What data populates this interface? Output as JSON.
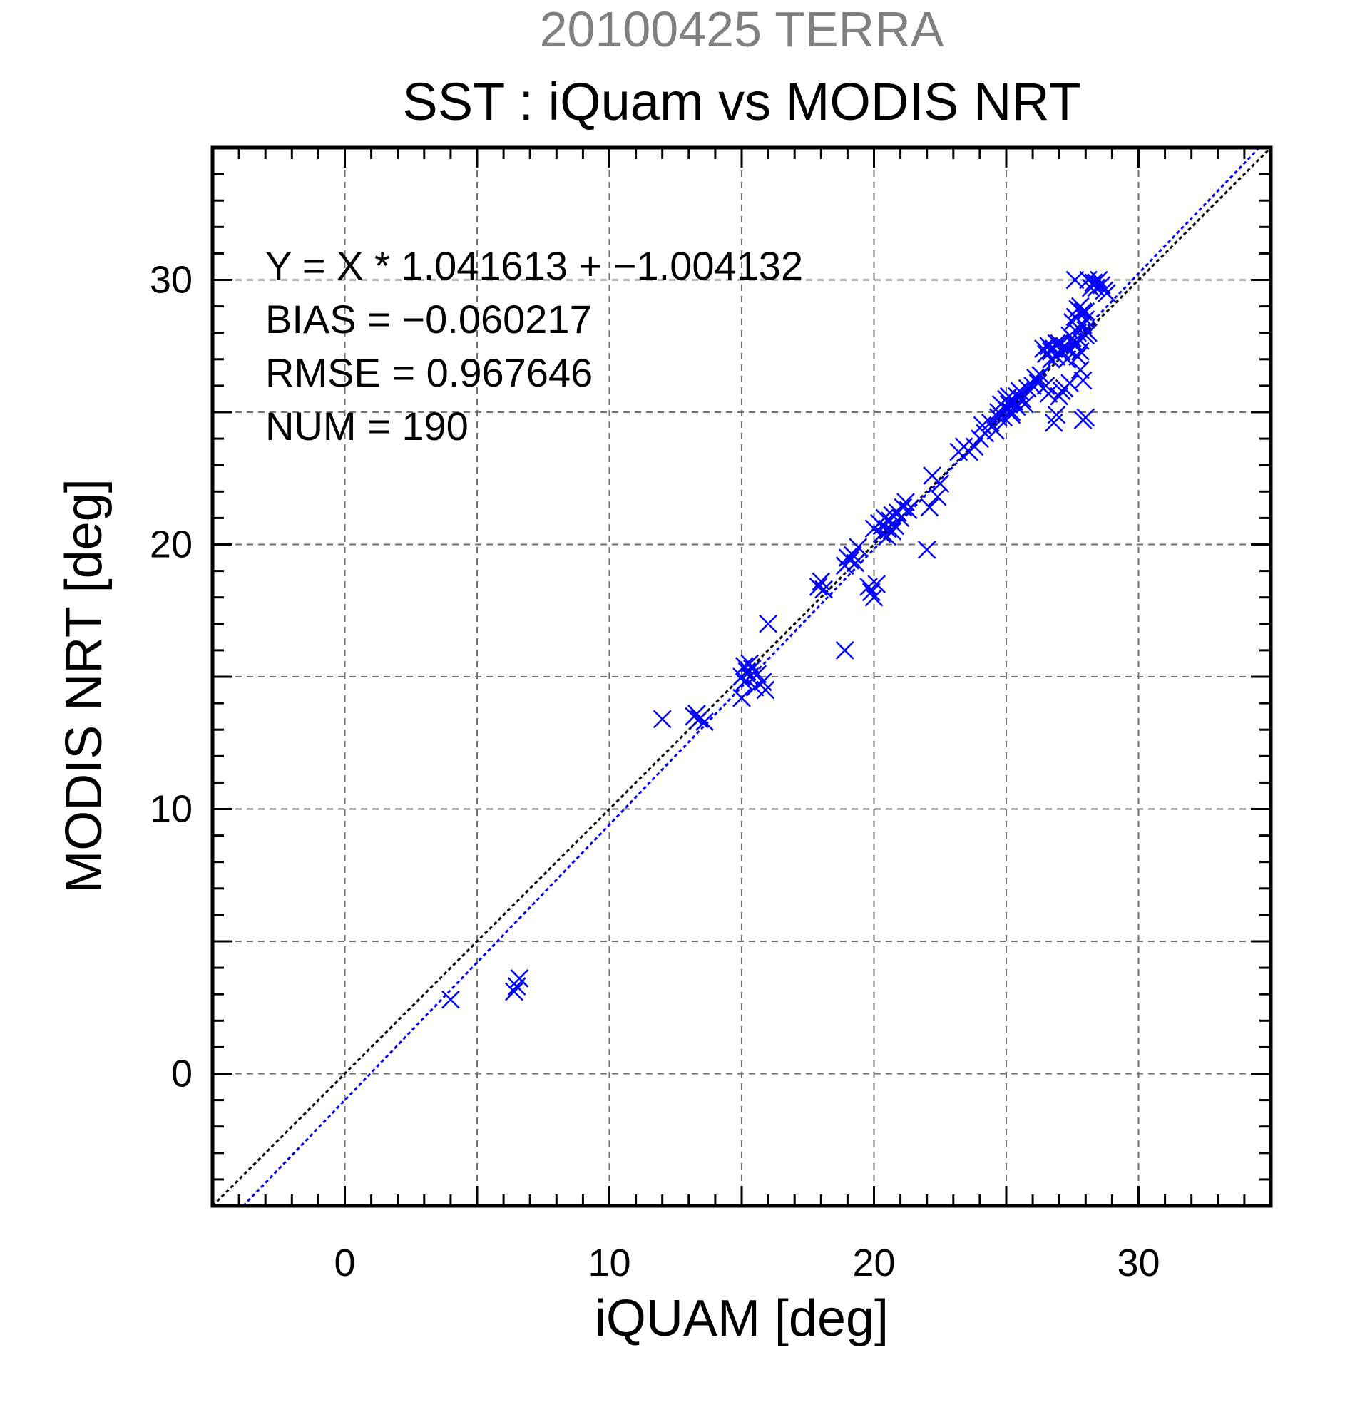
{
  "chart_data": {
    "type": "scatter",
    "title_date": "20100425 TERRA",
    "title": "SST : iQuam vs MODIS NRT",
    "xlabel": "iQUAM [deg]",
    "ylabel": "MODIS NRT [deg]",
    "xlim": [
      -5,
      35
    ],
    "ylim": [
      -5,
      35
    ],
    "xticks": [
      0,
      10,
      20,
      30
    ],
    "yticks": [
      0,
      10,
      20,
      30
    ],
    "xtick_labels": [
      "0",
      "10",
      "20",
      "30"
    ],
    "ytick_labels": [
      "0",
      "10",
      "20",
      "30"
    ],
    "grid": true,
    "marker": "x",
    "marker_color": "#0000ff",
    "stats": {
      "equation": "Y = X * 1.041613 + −1.004132",
      "bias": "BIAS = −0.060217",
      "rmse": "RMSE = 0.967646",
      "num": "NUM = 190"
    },
    "lines": [
      {
        "kind": "identity",
        "slope": 1,
        "intercept": 0,
        "color": "#000000",
        "style": "dotted"
      },
      {
        "kind": "regression",
        "slope": 1.041613,
        "intercept": -1.004132,
        "color": "#0000ff",
        "style": "dotted"
      }
    ],
    "points": [
      [
        4.0,
        2.8
      ],
      [
        6.4,
        3.1
      ],
      [
        6.6,
        3.6
      ],
      [
        6.5,
        3.3
      ],
      [
        12.0,
        13.4
      ],
      [
        13.2,
        13.5
      ],
      [
        13.4,
        13.4
      ],
      [
        13.6,
        13.3
      ],
      [
        13.3,
        13.6
      ],
      [
        15.0,
        14.2
      ],
      [
        15.0,
        15.0
      ],
      [
        15.1,
        15.4
      ],
      [
        15.2,
        15.2
      ],
      [
        15.3,
        15.5
      ],
      [
        15.4,
        15.3
      ],
      [
        15.5,
        14.6
      ],
      [
        15.6,
        15.1
      ],
      [
        15.8,
        14.8
      ],
      [
        15.9,
        14.5
      ],
      [
        15.1,
        14.8
      ],
      [
        15.3,
        15.0
      ],
      [
        16.0,
        17.0
      ],
      [
        17.9,
        18.4
      ],
      [
        18.0,
        18.6
      ],
      [
        18.1,
        18.3
      ],
      [
        18.9,
        16.0
      ],
      [
        18.9,
        19.2
      ],
      [
        19.1,
        19.4
      ],
      [
        19.2,
        19.6
      ],
      [
        19.4,
        19.9
      ],
      [
        19.3,
        19.3
      ],
      [
        19.0,
        19.5
      ],
      [
        19.8,
        18.4
      ],
      [
        20.0,
        18.0
      ],
      [
        20.1,
        18.5
      ],
      [
        19.9,
        18.2
      ],
      [
        20.0,
        20.6
      ],
      [
        20.2,
        20.8
      ],
      [
        20.3,
        20.4
      ],
      [
        20.4,
        21.0
      ],
      [
        20.5,
        20.6
      ],
      [
        20.6,
        20.9
      ],
      [
        20.7,
        21.1
      ],
      [
        20.8,
        20.7
      ],
      [
        20.9,
        21.2
      ],
      [
        21.0,
        21.0
      ],
      [
        21.1,
        21.4
      ],
      [
        21.2,
        21.6
      ],
      [
        21.3,
        21.3
      ],
      [
        20.5,
        20.3
      ],
      [
        20.3,
        20.7
      ],
      [
        20.7,
        20.5
      ],
      [
        22.0,
        19.8
      ],
      [
        22.1,
        21.4
      ],
      [
        22.2,
        22.6
      ],
      [
        22.4,
        21.8
      ],
      [
        22.5,
        22.3
      ],
      [
        23.2,
        23.5
      ],
      [
        23.4,
        23.7
      ],
      [
        23.6,
        23.5
      ],
      [
        23.8,
        23.7
      ],
      [
        24.0,
        24.0
      ],
      [
        24.1,
        24.5
      ],
      [
        24.2,
        24.2
      ],
      [
        24.4,
        24.6
      ],
      [
        24.6,
        24.3
      ],
      [
        24.7,
        25.0
      ],
      [
        24.8,
        25.3
      ],
      [
        24.9,
        24.8
      ],
      [
        25.0,
        25.1
      ],
      [
        25.1,
        25.6
      ],
      [
        25.2,
        25.0
      ],
      [
        25.3,
        25.4
      ],
      [
        25.4,
        25.2
      ],
      [
        25.5,
        25.8
      ],
      [
        25.6,
        25.5
      ],
      [
        25.7,
        25.3
      ],
      [
        25.8,
        25.9
      ],
      [
        25.0,
        25.5
      ],
      [
        24.9,
        25.2
      ],
      [
        25.2,
        24.9
      ],
      [
        25.4,
        25.6
      ],
      [
        25.1,
        25.3
      ],
      [
        24.7,
        24.8
      ],
      [
        26.0,
        26.0
      ],
      [
        26.1,
        26.3
      ],
      [
        26.2,
        26.1
      ],
      [
        26.3,
        26.4
      ],
      [
        26.5,
        26.0
      ],
      [
        26.6,
        25.7
      ],
      [
        26.8,
        24.6
      ],
      [
        26.9,
        24.9
      ],
      [
        27.0,
        25.6
      ],
      [
        27.1,
        25.8
      ],
      [
        27.2,
        25.9
      ],
      [
        27.4,
        26.1
      ],
      [
        26.5,
        27.2
      ],
      [
        26.6,
        27.5
      ],
      [
        26.7,
        27.3
      ],
      [
        26.8,
        27.4
      ],
      [
        26.9,
        27.1
      ],
      [
        27.0,
        27.6
      ],
      [
        27.1,
        27.3
      ],
      [
        27.2,
        27.5
      ],
      [
        27.3,
        27.0
      ],
      [
        26.4,
        27.4
      ],
      [
        26.7,
        27.0
      ],
      [
        27.5,
        27.8
      ],
      [
        27.6,
        27.5
      ],
      [
        27.7,
        28.0
      ],
      [
        27.8,
        27.7
      ],
      [
        27.9,
        28.3
      ],
      [
        28.0,
        28.1
      ],
      [
        27.6,
        28.6
      ],
      [
        27.7,
        28.9
      ],
      [
        27.8,
        29.0
      ],
      [
        27.9,
        28.8
      ],
      [
        28.0,
        28.8
      ],
      [
        27.5,
        28.4
      ],
      [
        27.7,
        27.1
      ],
      [
        27.8,
        26.6
      ],
      [
        27.9,
        26.2
      ],
      [
        27.8,
        27.3
      ],
      [
        28.0,
        27.9
      ],
      [
        28.1,
        28.0
      ],
      [
        28.0,
        24.8
      ],
      [
        27.9,
        24.7
      ],
      [
        27.6,
        30.0
      ],
      [
        28.1,
        30.0
      ],
      [
        28.3,
        29.9
      ],
      [
        28.4,
        29.7
      ],
      [
        28.5,
        30.0
      ],
      [
        28.6,
        29.8
      ],
      [
        28.7,
        29.6
      ],
      [
        28.8,
        29.5
      ],
      [
        28.4,
        29.9
      ],
      [
        28.2,
        29.7
      ],
      [
        28.0,
        28.5
      ],
      [
        27.6,
        27.6
      ],
      [
        27.4,
        27.9
      ],
      [
        27.3,
        27.4
      ],
      [
        26.9,
        27.6
      ]
    ]
  }
}
